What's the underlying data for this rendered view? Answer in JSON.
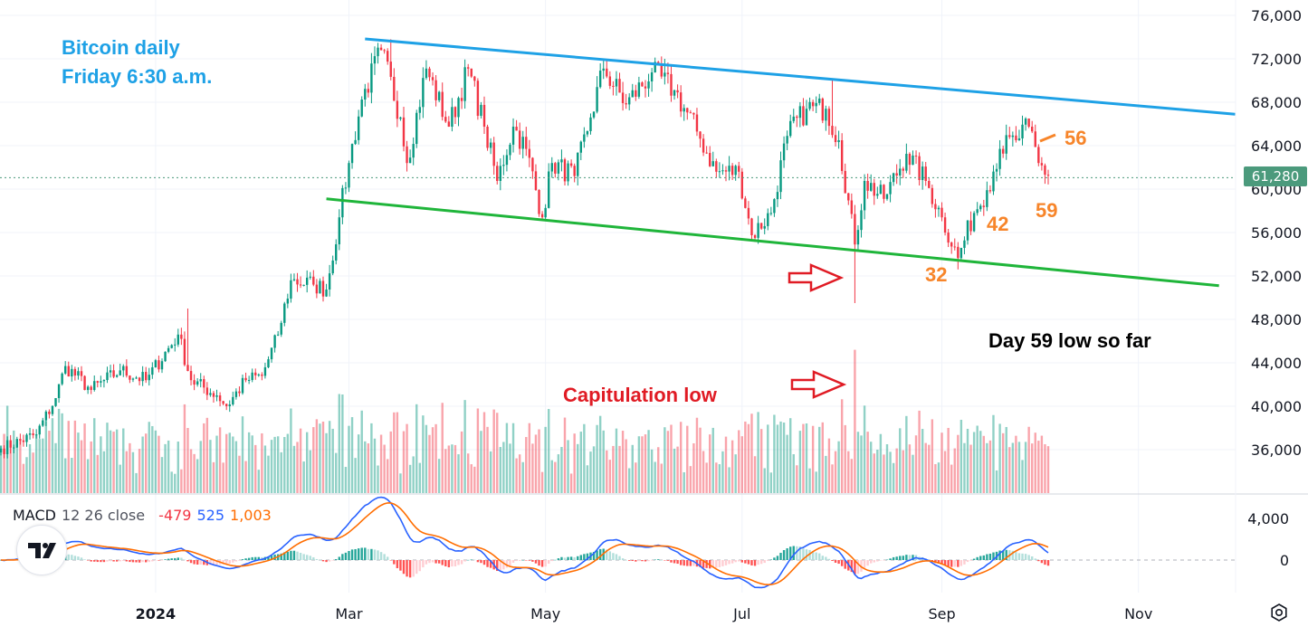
{
  "annotations": {
    "title_line1": "Bitcoin daily",
    "title_line2": "Friday 6:30 a.m.",
    "label_56": "56",
    "label_59": "59",
    "label_42": "42",
    "label_32": "32",
    "day59_note": "Day 59 low so far",
    "capitulation_note": "Capitulation low"
  },
  "last_price_label": "61,280",
  "macd_legend": {
    "name": "MACD",
    "params": "12 26 close",
    "histogram": "-479",
    "macd": "525",
    "signal": "1,003"
  },
  "colors": {
    "up": "#089981",
    "down": "#f23645",
    "upper_trendline": "#1ea1e6",
    "lower_trendline": "#1fb53a",
    "macd_line": "#2962ff",
    "signal_line": "#ff6d00",
    "annotation_orange": "#f7852a",
    "annotation_red": "#e01b24"
  },
  "chart_data": {
    "type": "candlestick",
    "title": "Bitcoin daily",
    "start_date": "2023-11-14",
    "end_date": "2024-10-04",
    "last_close": 61280,
    "close_anchors": [
      [
        "2023-11-14",
        36100
      ],
      [
        "2023-11-25",
        37400
      ],
      [
        "2023-12-01",
        40750
      ],
      [
        "2023-12-04",
        43700
      ],
      [
        "2023-12-12",
        41500
      ],
      [
        "2023-12-21",
        43300
      ],
      [
        "2023-12-29",
        42400
      ],
      [
        "2024-01-08",
        46600
      ],
      [
        "2024-01-12",
        42400
      ],
      [
        "2024-01-20",
        41000
      ],
      [
        "2024-01-23",
        40000
      ],
      [
        "2024-01-29",
        42400
      ],
      [
        "2024-02-03",
        42800
      ],
      [
        "2024-02-08",
        46600
      ],
      [
        "2024-02-12",
        51600
      ],
      [
        "2024-02-19",
        51200
      ],
      [
        "2024-02-23",
        50750
      ],
      [
        "2024-02-27",
        57400
      ],
      [
        "2024-03-01",
        62400
      ],
      [
        "2024-03-05",
        68250
      ],
      [
        "2024-03-11",
        72800
      ],
      [
        "2024-03-17",
        66600
      ],
      [
        "2024-03-19",
        62400
      ],
      [
        "2024-03-25",
        71100
      ],
      [
        "2024-04-01",
        65750
      ],
      [
        "2024-04-07",
        71100
      ],
      [
        "2024-04-12",
        65750
      ],
      [
        "2024-04-16",
        60750
      ],
      [
        "2024-04-21",
        65750
      ],
      [
        "2024-04-25",
        63700
      ],
      [
        "2024-04-30",
        57400
      ],
      [
        "2024-05-03",
        62400
      ],
      [
        "2024-05-10",
        61200
      ],
      [
        "2024-05-15",
        66600
      ],
      [
        "2024-05-19",
        71100
      ],
      [
        "2024-05-26",
        67800
      ],
      [
        "2024-06-03",
        70750
      ],
      [
        "2024-06-10",
        69100
      ],
      [
        "2024-06-17",
        65300
      ],
      [
        "2024-06-23",
        61600
      ],
      [
        "2024-06-30",
        61600
      ],
      [
        "2024-07-04",
        55750
      ],
      [
        "2024-07-10",
        57800
      ],
      [
        "2024-07-15",
        64900
      ],
      [
        "2024-07-21",
        67400
      ],
      [
        "2024-07-27",
        67400
      ],
      [
        "2024-07-31",
        64500
      ],
      [
        "2024-08-05",
        54900
      ],
      [
        "2024-08-08",
        60750
      ],
      [
        "2024-08-14",
        59100
      ],
      [
        "2024-08-21",
        63250
      ],
      [
        "2024-08-27",
        60750
      ],
      [
        "2024-09-01",
        57400
      ],
      [
        "2024-09-06",
        53650
      ],
      [
        "2024-09-11",
        57800
      ],
      [
        "2024-09-15",
        59900
      ],
      [
        "2024-09-19",
        63700
      ],
      [
        "2024-09-24",
        64500
      ],
      [
        "2024-09-28",
        65750
      ],
      [
        "2024-10-01",
        62400
      ],
      [
        "2024-10-04",
        61280
      ]
    ],
    "wick_extremes": [
      [
        "2024-01-11",
        "high",
        49000
      ],
      [
        "2024-03-14",
        "high",
        73800
      ],
      [
        "2024-06-07",
        "high",
        72000
      ],
      [
        "2024-07-29",
        "high",
        70000
      ],
      [
        "2024-08-05",
        "low",
        49500
      ],
      [
        "2024-09-06",
        "low",
        52600
      ]
    ],
    "volume_spikes": [
      [
        "2024-08-05",
        3.3
      ],
      [
        "2024-03-05",
        1.9
      ],
      [
        "2024-01-11",
        1.5
      ]
    ],
    "trendlines": [
      {
        "name": "upper",
        "from": [
          "2024-03-06",
          73830
        ],
        "to": [
          "2024-12-01",
          66900
        ]
      },
      {
        "name": "lower",
        "from": [
          "2024-02-23",
          59100
        ],
        "to": [
          "2024-11-26",
          51100
        ]
      }
    ],
    "y_ticks": [
      76000,
      72000,
      68000,
      64000,
      60000,
      56000,
      52000,
      48000,
      44000,
      40000,
      36000
    ],
    "ylim": [
      34000,
      77400
    ],
    "macd_ticks": [
      4000,
      0
    ],
    "x_ticks": [
      {
        "label": "2024",
        "date": "2024-01-01",
        "bold": true
      },
      {
        "label": "Mar",
        "date": "2024-03-01"
      },
      {
        "label": "May",
        "date": "2024-05-01"
      },
      {
        "label": "Jul",
        "date": "2024-07-01"
      },
      {
        "label": "Sep",
        "date": "2024-09-01"
      },
      {
        "label": "Nov",
        "date": "2024-11-01"
      }
    ],
    "macd": {
      "fast": 12,
      "slow": 26,
      "signal": 9,
      "source": "close"
    }
  }
}
